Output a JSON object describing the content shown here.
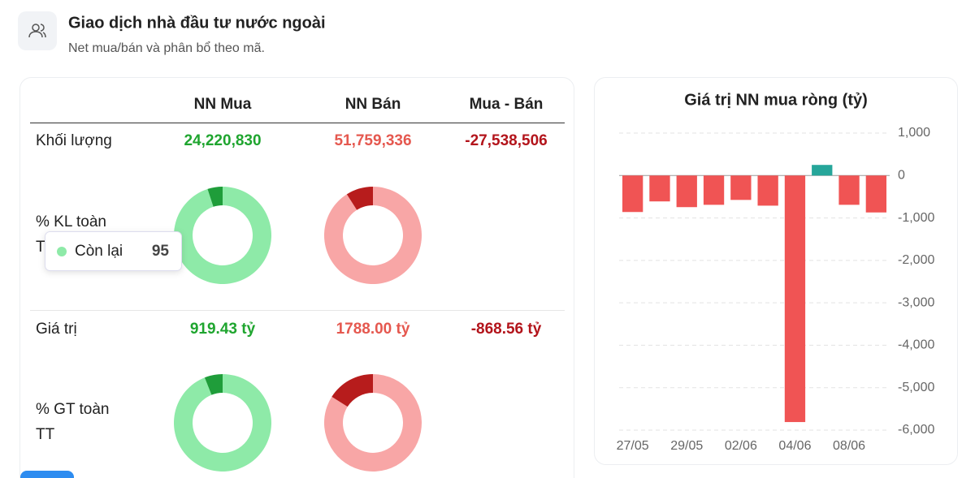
{
  "header": {
    "title": "Giao dịch nhà đầu tư nước ngoài",
    "subtitle": "Net mua/bán và phân bổ theo mã."
  },
  "table": {
    "columns": [
      "NN Mua",
      "NN Bán",
      "Mua - Bán"
    ],
    "rows": [
      {
        "label": "Khối lượng",
        "values": [
          "24,220,830",
          "51,759,336",
          "-27,538,506"
        ]
      },
      {
        "label_lines": [
          "% KL toàn",
          "TT"
        ]
      },
      {
        "label": "Giá trị",
        "values": [
          "919.43 tỷ",
          "1788.00 tỷ",
          "-868.56 tỷ"
        ]
      },
      {
        "label_lines": [
          "% GT toàn",
          "TT"
        ]
      }
    ]
  },
  "chart_data": [
    {
      "type": "bar",
      "title": "Giá trị NN mua ròng (tỷ)",
      "categories": [
        "27/05",
        null,
        "29/05",
        null,
        "02/06",
        null,
        "04/06",
        null,
        "08/06",
        null
      ],
      "values": [
        -860,
        -610,
        -745,
        -690,
        -575,
        -710,
        -5810,
        250,
        -690,
        -870
      ],
      "color_negative": "#f05454",
      "color_positive": "#26a69a",
      "ylim": [
        -6000,
        1000
      ],
      "yticks": [
        {
          "value": 1000,
          "label": "1,000"
        },
        0,
        {
          "value": -1000,
          "label": "-1,000"
        },
        {
          "value": -2000,
          "label": "-2,000"
        },
        {
          "value": -3000,
          "label": "-3,000"
        },
        {
          "value": -4000,
          "label": "-4,000"
        },
        {
          "value": -5000,
          "label": "-5,000"
        },
        {
          "value": -6000,
          "label": "-6,000"
        }
      ],
      "grid": true
    },
    {
      "type": "pie",
      "categories": [
        "Còn lại",
        null
      ],
      "values": [
        95,
        5
      ],
      "colors": [
        "#8eeaa8",
        "#1f9d3a"
      ]
    },
    {
      "type": "pie",
      "categories": [
        null,
        null
      ],
      "values": [
        91,
        9
      ],
      "colors": [
        "#f8a6a6",
        "#b71c1c"
      ]
    },
    {
      "type": "pie",
      "categories": [
        null,
        null
      ],
      "values": [
        94,
        6
      ],
      "colors": [
        "#8eeaa8",
        "#1f9d3a"
      ]
    },
    {
      "type": "pie",
      "categories": [
        null,
        null
      ],
      "values": [
        84,
        16
      ],
      "colors": [
        "#f8a6a6",
        "#b71c1c"
      ]
    }
  ]
}
